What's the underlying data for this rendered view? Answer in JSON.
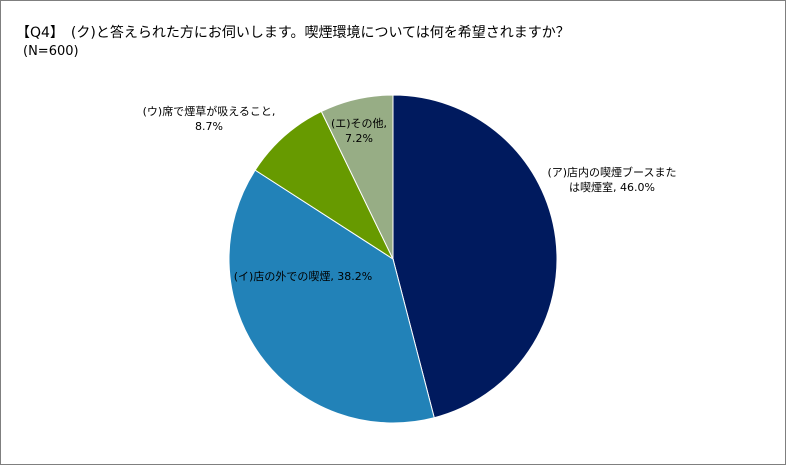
{
  "chart_data": {
    "type": "pie",
    "title": "【Q4】　(ク)と答えられた方にお伺いします。喫煙環境については何を希望されますか？",
    "subtitle": "(N=600)",
    "start": "12 o'clock, clockwise",
    "slices": [
      {
        "label_lines": [
          "(ア)店内の喫煙ブースまた",
          "は喫煙室, 46.0%"
        ],
        "value": 46.0,
        "color": "#001a5e"
      },
      {
        "label_lines": [
          "(イ)店の外での喫煙, 38.2%"
        ],
        "value": 38.2,
        "color": "#2282b8"
      },
      {
        "label_lines": [
          "(ウ)席で煙草が吸えること,",
          "8.7%"
        ],
        "value": 8.7,
        "color": "#679a00"
      },
      {
        "label_lines": [
          "(エ)その他,",
          "7.2%"
        ],
        "value": 7.2,
        "color": "#97ad85"
      }
    ]
  }
}
